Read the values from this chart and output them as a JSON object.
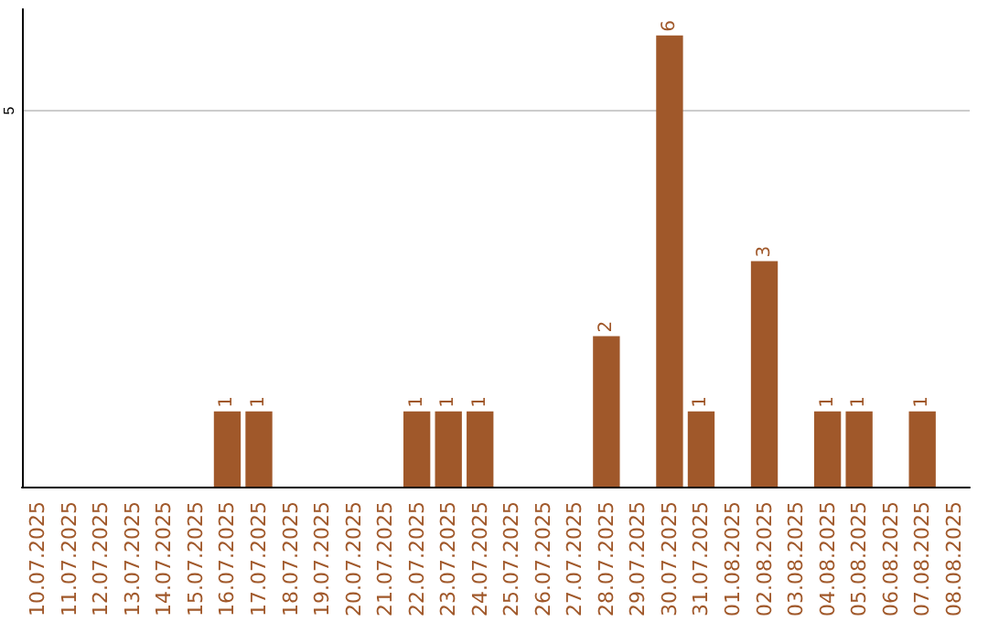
{
  "chart_data": {
    "type": "bar",
    "categories": [
      "10.07.2025",
      "11.07.2025",
      "12.07.2025",
      "13.07.2025",
      "14.07.2025",
      "15.07.2025",
      "16.07.2025",
      "17.07.2025",
      "18.07.2025",
      "19.07.2025",
      "20.07.2025",
      "21.07.2025",
      "22.07.2025",
      "23.07.2025",
      "24.07.2025",
      "25.07.2025",
      "26.07.2025",
      "27.07.2025",
      "28.07.2025",
      "29.07.2025",
      "30.07.2025",
      "31.07.2025",
      "01.08.2025",
      "02.08.2025",
      "03.08.2025",
      "04.08.2025",
      "05.08.2025",
      "06.08.2025",
      "07.08.2025",
      "08.08.2025"
    ],
    "values": [
      0,
      0,
      0,
      0,
      0,
      0,
      1,
      1,
      0,
      0,
      0,
      0,
      1,
      1,
      1,
      0,
      0,
      0,
      2,
      0,
      6,
      1,
      0,
      3,
      0,
      1,
      1,
      0,
      1,
      0
    ],
    "value_labels": [
      null,
      null,
      null,
      null,
      null,
      null,
      "1",
      "1",
      null,
      null,
      null,
      null,
      "1",
      "1",
      "1",
      null,
      null,
      null,
      "2",
      null,
      "6",
      "1",
      null,
      "3",
      null,
      "1",
      "1",
      null,
      "1",
      null
    ],
    "color": "#a0582a",
    "ylim": [
      0,
      6.35
    ],
    "yticks": [
      5
    ],
    "grid": "y"
  }
}
